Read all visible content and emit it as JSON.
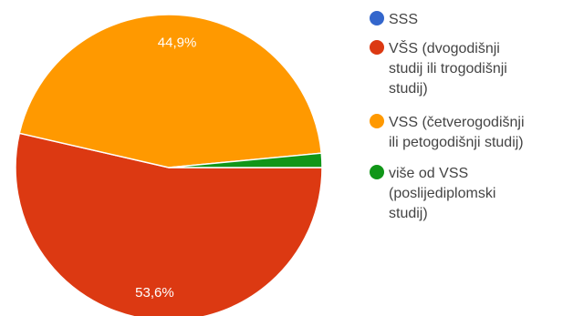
{
  "chart_data": {
    "type": "pie",
    "title": "",
    "legend_position": "right",
    "slices": [
      {
        "label": "SSS",
        "value": 0.0,
        "color": "#3366cc",
        "display": ""
      },
      {
        "label": "VŠS (dvogodišnji studij ili trogodišnji studij)",
        "value": 53.6,
        "color": "#dc3912",
        "display": "53,6%"
      },
      {
        "label": "VSS (četverogodišnji ili petogodišnji studij)",
        "value": 44.9,
        "color": "#ff9900",
        "display": "44,9%"
      },
      {
        "label": "više od VSS (poslijediplomski studij)",
        "value": 1.5,
        "color": "#109618",
        "display": ""
      }
    ],
    "legend_lines": [
      [
        "SSS"
      ],
      [
        "VŠS (dvogodišnji",
        "studij ili trogodišnji",
        "studij)"
      ],
      [
        "VSS (četverogodišnji",
        "ili petogodišnji studij)"
      ],
      [
        "više od VSS",
        "(poslijediplomski",
        "studij)"
      ]
    ]
  }
}
